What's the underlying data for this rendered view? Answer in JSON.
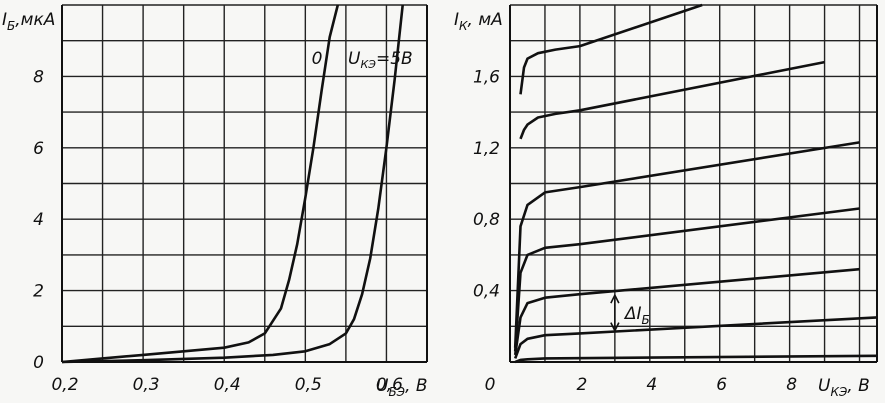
{
  "chart_data": [
    {
      "type": "line",
      "title": "",
      "ylabel": "I_Б, мкА",
      "ylabel_main": "I",
      "ylabel_sub": "Б",
      "ylabel_unit": ",мкА",
      "xlabel": "U_БЭ, В",
      "xlabel_main": "U",
      "xlabel_sub": "БЭ",
      "xlabel_unit": ", В",
      "xlim": [
        0.2,
        0.65
      ],
      "ylim": [
        0,
        10
      ],
      "x_ticks": [
        0.2,
        0.3,
        0.4,
        0.5,
        0.6
      ],
      "x_tick_labels": [
        "0,2",
        "0,3",
        "0,4",
        "0,5",
        "0,6"
      ],
      "y_ticks": [
        0,
        2,
        4,
        6,
        8
      ],
      "y_tick_labels": [
        "0",
        "2",
        "4",
        "6",
        "8"
      ],
      "grid": true,
      "annotations": [
        "0",
        "U_КЭ=5В"
      ],
      "annotation_zero": "0",
      "annotation_uke_main": "U",
      "annotation_uke_sub": "КЭ",
      "annotation_uke_value": "=5В",
      "series": [
        {
          "name": "0",
          "x": [
            0.2,
            0.25,
            0.3,
            0.35,
            0.4,
            0.43,
            0.45,
            0.47,
            0.48,
            0.49,
            0.5,
            0.51,
            0.52,
            0.53,
            0.54
          ],
          "y": [
            0.0,
            0.1,
            0.2,
            0.3,
            0.4,
            0.55,
            0.8,
            1.5,
            2.3,
            3.3,
            4.6,
            6.0,
            7.6,
            9.1,
            10.0
          ]
        },
        {
          "name": "U_КЭ=5В",
          "x": [
            0.2,
            0.3,
            0.4,
            0.46,
            0.5,
            0.53,
            0.55,
            0.56,
            0.57,
            0.58,
            0.59,
            0.6,
            0.61,
            0.62
          ],
          "y": [
            0.0,
            0.05,
            0.12,
            0.2,
            0.3,
            0.5,
            0.8,
            1.2,
            1.9,
            2.9,
            4.3,
            6.0,
            7.9,
            10.0
          ]
        }
      ]
    },
    {
      "type": "line",
      "title": "",
      "ylabel": "I_К, мА",
      "ylabel_main": "I",
      "ylabel_sub": "К",
      "ylabel_unit": ", мА",
      "xlabel": "U_КЭ, В",
      "xlabel_main": "U",
      "xlabel_sub": "КЭ",
      "xlabel_unit": ", В",
      "xlim": [
        0,
        10.5
      ],
      "ylim": [
        0,
        2.0
      ],
      "x_ticks": [
        0,
        2,
        4,
        6,
        8
      ],
      "x_tick_labels": [
        "0",
        "2",
        "4",
        "6",
        "8"
      ],
      "y_ticks": [
        0.4,
        0.8,
        1.2,
        1.6
      ],
      "y_tick_labels": [
        "0,4",
        "0,8",
        "1,2",
        "1,6"
      ],
      "grid": true,
      "annotation": "ΔI_Б",
      "annotation_main": "ΔI",
      "annotation_sub": "Б",
      "delta_arrow": {
        "x": 3.0,
        "y_low": 0.17,
        "y_high": 0.38
      },
      "series": [
        {
          "name": "",
          "x": [
            0.15,
            0.3,
            0.5,
            1.0,
            10.5
          ],
          "y": [
            0.0,
            0.012,
            0.015,
            0.02,
            0.035
          ]
        },
        {
          "name": "",
          "x": [
            0.15,
            0.3,
            0.5,
            1.0,
            2.0,
            10.5
          ],
          "y": [
            0.02,
            0.1,
            0.13,
            0.15,
            0.16,
            0.25
          ]
        },
        {
          "name": "",
          "x": [
            0.15,
            0.3,
            0.5,
            1.0,
            2.0,
            10.0
          ],
          "y": [
            0.04,
            0.25,
            0.33,
            0.36,
            0.38,
            0.52
          ]
        },
        {
          "name": "",
          "x": [
            0.15,
            0.3,
            0.5,
            1.0,
            2.0,
            10.0
          ],
          "y": [
            0.06,
            0.5,
            0.6,
            0.64,
            0.66,
            0.86
          ]
        },
        {
          "name": "",
          "x": [
            0.15,
            0.3,
            0.5,
            1.0,
            2.0,
            10.0
          ],
          "y": [
            0.08,
            0.76,
            0.88,
            0.95,
            0.98,
            1.23
          ]
        },
        {
          "name": "",
          "x": [
            0.3,
            0.4,
            0.5,
            0.8,
            1.3,
            2.0,
            9.0
          ],
          "y": [
            1.25,
            1.3,
            1.33,
            1.37,
            1.39,
            1.41,
            1.68
          ]
        },
        {
          "name": "",
          "x": [
            0.3,
            0.4,
            0.5,
            0.8,
            1.3,
            2.0,
            5.5
          ],
          "y": [
            1.5,
            1.65,
            1.7,
            1.73,
            1.75,
            1.77,
            2.0
          ]
        }
      ]
    }
  ]
}
